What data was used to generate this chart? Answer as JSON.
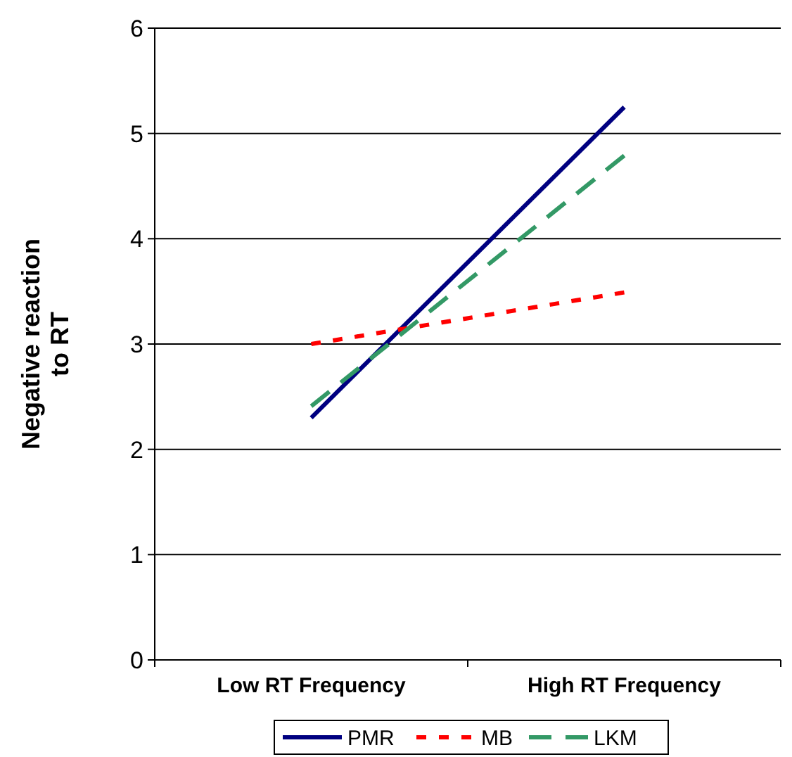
{
  "chart_data": {
    "type": "line",
    "ylabel": "Negative reaction to RT",
    "categories": [
      "Low RT Frequency",
      "High RT Frequency"
    ],
    "series": [
      {
        "name": "PMR",
        "color": "#000080",
        "values": [
          2.3,
          5.25
        ],
        "line_style": "solid"
      },
      {
        "name": "MB",
        "color": "#ff0000",
        "values": [
          3.0,
          3.49
        ],
        "line_style": "dotted"
      },
      {
        "name": "LKM",
        "color": "#339966",
        "values": [
          2.41,
          4.79
        ],
        "line_style": "dashed"
      }
    ],
    "ylim": [
      0,
      6
    ],
    "yticks": [
      0,
      1,
      2,
      3,
      4,
      5,
      6
    ],
    "grid": "y",
    "legend": "bottom",
    "marker": "none"
  }
}
